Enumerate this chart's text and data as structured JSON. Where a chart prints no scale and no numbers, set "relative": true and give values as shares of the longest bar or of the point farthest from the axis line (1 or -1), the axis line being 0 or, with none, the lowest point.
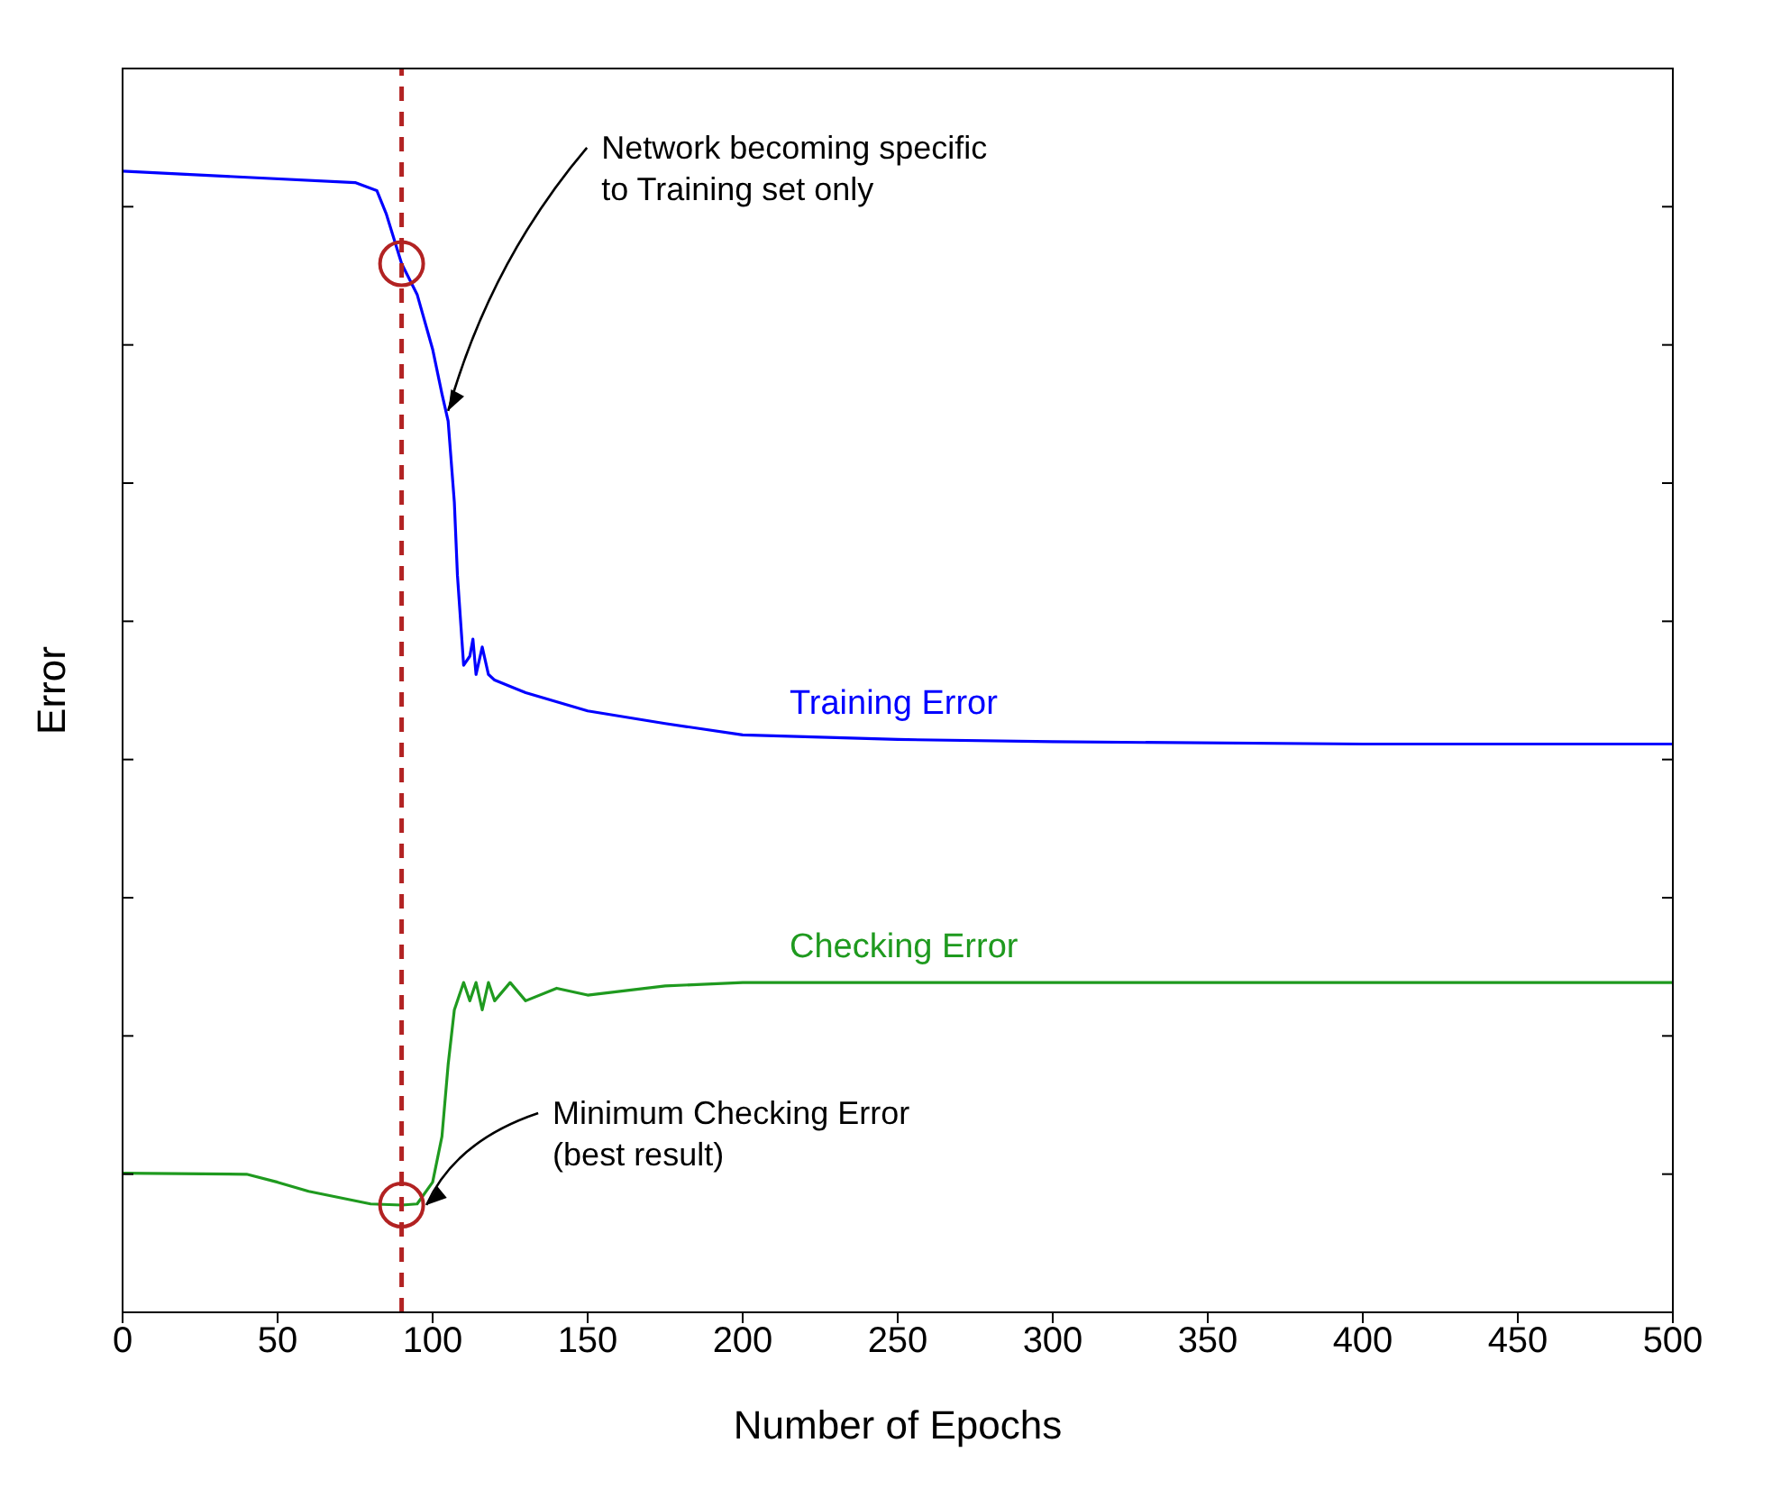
{
  "chart_data": {
    "type": "line",
    "relative": true,
    "xlabel": "Number of Epochs",
    "ylabel": "Error",
    "xlim": [
      0,
      500
    ],
    "xticks": [
      0,
      50,
      100,
      150,
      200,
      250,
      300,
      350,
      400,
      450,
      500
    ],
    "marker": "none",
    "line_style": "solid",
    "series": [
      {
        "name": "Training Error",
        "color": "#0000ff",
        "x": [
          0,
          75,
          82,
          85,
          90,
          95,
          100,
          103,
          105,
          107,
          108,
          110,
          112,
          113,
          114,
          116,
          118,
          120,
          130,
          150,
          175,
          200,
          250,
          300,
          400,
          500
        ],
        "values": [
          1.0,
          0.99,
          0.983,
          0.963,
          0.919,
          0.892,
          0.844,
          0.805,
          0.781,
          0.71,
          0.646,
          0.567,
          0.575,
          0.59,
          0.559,
          0.583,
          0.559,
          0.554,
          0.543,
          0.527,
          0.516,
          0.506,
          0.502,
          0.5,
          0.498,
          0.498
        ]
      },
      {
        "name": "Checking Error",
        "color": "#1f9a1f",
        "x": [
          0,
          40,
          50,
          60,
          80,
          90,
          95,
          100,
          103,
          105,
          107,
          110,
          112,
          114,
          116,
          118,
          120,
          125,
          130,
          140,
          150,
          175,
          200,
          250,
          500
        ],
        "values": [
          0.122,
          0.121,
          0.114,
          0.106,
          0.095,
          0.094,
          0.095,
          0.114,
          0.154,
          0.217,
          0.265,
          0.289,
          0.273,
          0.289,
          0.265,
          0.289,
          0.273,
          0.289,
          0.273,
          0.284,
          0.278,
          0.286,
          0.289,
          0.289,
          0.289
        ]
      }
    ],
    "ref_lines": [
      {
        "axis": "x",
        "value": 90,
        "color": "#b22222",
        "line_style": "dashed"
      }
    ],
    "annotations": [
      {
        "text": "Network becoming specific to Training set only",
        "x": 105,
        "y": 0.79
      },
      {
        "text": "Minimum Checking Error (best result)",
        "x": 98,
        "y": 0.094
      }
    ]
  }
}
